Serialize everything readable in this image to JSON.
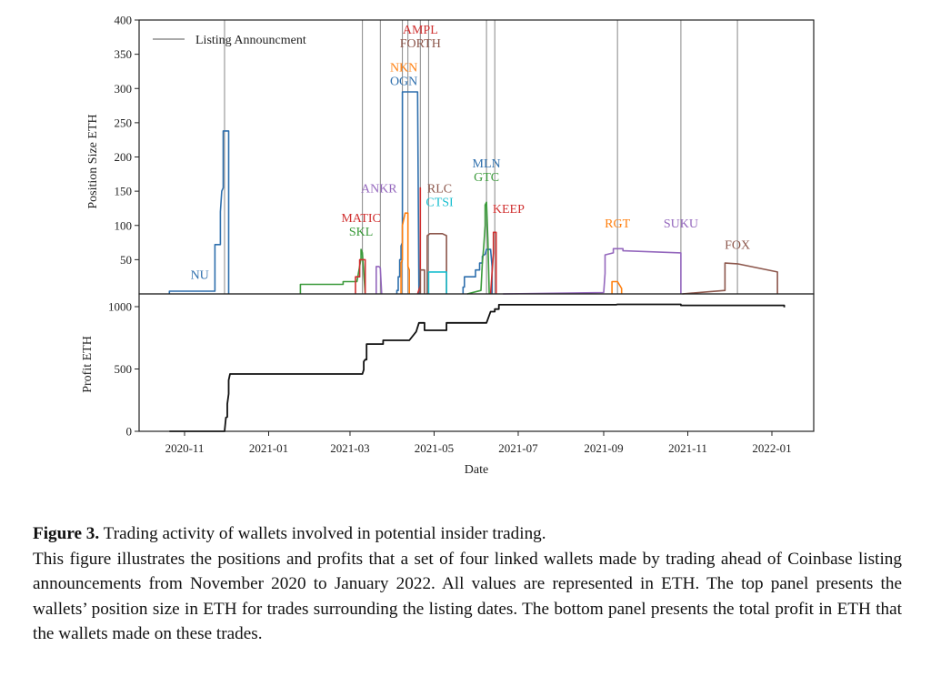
{
  "chart_data": [
    {
      "type": "line",
      "panel": "top",
      "title": "",
      "xlabel": "",
      "ylabel": "Position Size ETH",
      "ylim": [
        0,
        400
      ],
      "yticks": [
        50,
        100,
        150,
        200,
        250,
        300,
        350,
        400
      ],
      "xlim": [
        "2020-10-08",
        "2022-01-31"
      ],
      "legend": {
        "placement": "top-left",
        "entries": [
          {
            "label": "Listing Announcment",
            "style": "gray-vertical-line"
          }
        ]
      },
      "announcements": [
        "2020-11-30",
        "2021-03-10",
        "2021-03-23",
        "2021-04-08",
        "2021-04-12",
        "2021-04-21",
        "2021-04-27",
        "2021-06-08",
        "2021-06-14",
        "2021-09-11",
        "2021-10-27",
        "2021-12-07"
      ],
      "annotations": [
        {
          "text": "NU",
          "color": "#2e6fad",
          "date": "2020-11-12",
          "y": 22
        },
        {
          "text": "MATIC",
          "color": "#d03030",
          "date": "2021-03-09",
          "y": 105
        },
        {
          "text": "SKL",
          "color": "#3a9a3a",
          "date": "2021-03-09",
          "y": 85
        },
        {
          "text": "ANKR",
          "color": "#9467bd",
          "date": "2021-03-22",
          "y": 148
        },
        {
          "text": "NKN",
          "color": "#ff7f0e",
          "date": "2021-04-09",
          "y": 325
        },
        {
          "text": "OGN",
          "color": "#2e6fad",
          "date": "2021-04-09",
          "y": 305
        },
        {
          "text": "AMPL",
          "color": "#d03030",
          "date": "2021-04-21",
          "y": 380
        },
        {
          "text": "FORTH",
          "color": "#8c564b",
          "date": "2021-04-21",
          "y": 360
        },
        {
          "text": "RLC",
          "color": "#8c564b",
          "date": "2021-05-05",
          "y": 148
        },
        {
          "text": "CTSI",
          "color": "#17becf",
          "date": "2021-05-05",
          "y": 128
        },
        {
          "text": "MLN",
          "color": "#2e6fad",
          "date": "2021-06-08",
          "y": 185
        },
        {
          "text": "GTC",
          "color": "#3a9a3a",
          "date": "2021-06-08",
          "y": 165
        },
        {
          "text": "KEEP",
          "color": "#d03030",
          "date": "2021-06-24",
          "y": 118
        },
        {
          "text": "RGT",
          "color": "#ff7f0e",
          "date": "2021-09-11",
          "y": 97
        },
        {
          "text": "SUKU",
          "color": "#9467bd",
          "date": "2021-10-27",
          "y": 97
        },
        {
          "text": "FOX",
          "color": "#8c564b",
          "date": "2021-12-07",
          "y": 66
        }
      ],
      "series": [
        {
          "name": "NU",
          "color": "#2e6fad",
          "points": [
            [
              "2020-10-21",
              0
            ],
            [
              "2020-10-21",
              4
            ],
            [
              "2020-11-23",
              4
            ],
            [
              "2020-11-23",
              72
            ],
            [
              "2020-11-27",
              72
            ],
            [
              "2020-11-27",
              120
            ],
            [
              "2020-11-28",
              150
            ],
            [
              "2020-11-29",
              155
            ],
            [
              "2020-11-29",
              238
            ],
            [
              "2020-12-03",
              238
            ],
            [
              "2020-12-03",
              0
            ]
          ]
        },
        {
          "name": "SKL",
          "color": "#3a9a3a",
          "points": [
            [
              "2021-01-24",
              0
            ],
            [
              "2021-01-24",
              14
            ],
            [
              "2021-02-24",
              14
            ],
            [
              "2021-02-24",
              18
            ],
            [
              "2021-03-06",
              18
            ],
            [
              "2021-03-09",
              52
            ],
            [
              "2021-03-09",
              65
            ],
            [
              "2021-03-10",
              60
            ],
            [
              "2021-03-12",
              0
            ]
          ]
        },
        {
          "name": "MATIC",
          "color": "#d03030",
          "points": [
            [
              "2021-03-05",
              0
            ],
            [
              "2021-03-05",
              25
            ],
            [
              "2021-03-08",
              25
            ],
            [
              "2021-03-08",
              50
            ],
            [
              "2021-03-11",
              50
            ],
            [
              "2021-03-12",
              50
            ],
            [
              "2021-03-12",
              0
            ]
          ]
        },
        {
          "name": "ANKR",
          "color": "#9467bd",
          "points": [
            [
              "2021-03-20",
              0
            ],
            [
              "2021-03-20",
              40
            ],
            [
              "2021-03-22",
              40
            ],
            [
              "2021-03-23",
              38
            ],
            [
              "2021-03-24",
              0
            ]
          ]
        },
        {
          "name": "OGN",
          "color": "#2e6fad",
          "points": [
            [
              "2021-04-04",
              0
            ],
            [
              "2021-04-04",
              5
            ],
            [
              "2021-04-05",
              5
            ],
            [
              "2021-04-05",
              25
            ],
            [
              "2021-04-06",
              25
            ],
            [
              "2021-04-06",
              50
            ],
            [
              "2021-04-07",
              50
            ],
            [
              "2021-04-07",
              70
            ],
            [
              "2021-04-08",
              75
            ],
            [
              "2021-04-08",
              135
            ],
            [
              "2021-04-08",
              295
            ],
            [
              "2021-04-19",
              295
            ],
            [
              "2021-04-20",
              0
            ]
          ]
        },
        {
          "name": "NKN",
          "color": "#ff7f0e",
          "points": [
            [
              "2021-04-07",
              0
            ],
            [
              "2021-04-07",
              45
            ],
            [
              "2021-04-08",
              50
            ],
            [
              "2021-04-08",
              100
            ],
            [
              "2021-04-10",
              118
            ],
            [
              "2021-04-12",
              118
            ],
            [
              "2021-04-12",
              40
            ],
            [
              "2021-04-13",
              35
            ],
            [
              "2021-04-13",
              0
            ]
          ]
        },
        {
          "name": "AMPL",
          "color": "#d03030",
          "points": [
            [
              "2021-04-19",
              0
            ],
            [
              "2021-04-21",
              12
            ],
            [
              "2021-04-21",
              155
            ],
            [
              "2021-04-21",
              0
            ]
          ]
        },
        {
          "name": "FORTH",
          "color": "#8c564b",
          "points": [
            [
              "2021-04-21",
              0
            ],
            [
              "2021-04-21",
              35
            ],
            [
              "2021-04-24",
              35
            ],
            [
              "2021-04-24",
              0
            ]
          ]
        },
        {
          "name": "RLC",
          "color": "#8c564b",
          "points": [
            [
              "2021-04-26",
              0
            ],
            [
              "2021-04-26",
              85
            ],
            [
              "2021-04-28",
              88
            ],
            [
              "2021-05-07",
              88
            ],
            [
              "2021-05-10",
              85
            ],
            [
              "2021-05-10",
              0
            ]
          ]
        },
        {
          "name": "CTSI",
          "color": "#17becf",
          "points": [
            [
              "2021-04-27",
              0
            ],
            [
              "2021-04-27",
              32
            ],
            [
              "2021-05-10",
              32
            ],
            [
              "2021-05-10",
              0
            ]
          ]
        },
        {
          "name": "MLN",
          "color": "#2e6fad",
          "points": [
            [
              "2021-05-22",
              0
            ],
            [
              "2021-05-22",
              10
            ],
            [
              "2021-05-23",
              10
            ],
            [
              "2021-05-23",
              25
            ],
            [
              "2021-05-31",
              25
            ],
            [
              "2021-05-31",
              35
            ],
            [
              "2021-06-03",
              35
            ],
            [
              "2021-06-03",
              45
            ],
            [
              "2021-06-05",
              45
            ],
            [
              "2021-06-05",
              55
            ],
            [
              "2021-06-07",
              58
            ],
            [
              "2021-06-08",
              65
            ],
            [
              "2021-06-11",
              65
            ],
            [
              "2021-06-12",
              40
            ],
            [
              "2021-06-12",
              0
            ]
          ]
        },
        {
          "name": "GTC",
          "color": "#3a9a3a",
          "points": [
            [
              "2021-05-25",
              0
            ],
            [
              "2021-06-04",
              5
            ],
            [
              "2021-06-05",
              45
            ],
            [
              "2021-06-06",
              70
            ],
            [
              "2021-06-07",
              100
            ],
            [
              "2021-06-07",
              130
            ],
            [
              "2021-06-08",
              134
            ],
            [
              "2021-06-09",
              80
            ],
            [
              "2021-06-10",
              0
            ]
          ]
        },
        {
          "name": "KEEP",
          "color": "#d03030",
          "points": [
            [
              "2021-06-11",
              0
            ],
            [
              "2021-06-13",
              60
            ],
            [
              "2021-06-13",
              90
            ],
            [
              "2021-06-15",
              90
            ],
            [
              "2021-06-15",
              0
            ]
          ]
        },
        {
          "name": "SUKU",
          "color": "#9467bd",
          "points": [
            [
              "2021-06-20",
              0
            ],
            [
              "2021-09-01",
              2
            ],
            [
              "2021-09-02",
              30
            ],
            [
              "2021-09-02",
              57
            ],
            [
              "2021-09-08",
              60
            ],
            [
              "2021-09-08",
              66
            ],
            [
              "2021-09-15",
              66
            ],
            [
              "2021-09-15",
              63
            ],
            [
              "2021-10-27",
              60
            ],
            [
              "2021-10-27",
              0
            ]
          ]
        },
        {
          "name": "RGT",
          "color": "#ff7f0e",
          "points": [
            [
              "2021-09-07",
              0
            ],
            [
              "2021-09-07",
              18
            ],
            [
              "2021-09-11",
              18
            ],
            [
              "2021-09-14",
              8
            ],
            [
              "2021-09-14",
              0
            ]
          ]
        },
        {
          "name": "FOX",
          "color": "#8c564b",
          "points": [
            [
              "2021-10-28",
              0
            ],
            [
              "2021-11-28",
              5
            ],
            [
              "2021-11-28",
              45
            ],
            [
              "2021-12-07",
              44
            ],
            [
              "2022-01-05",
              32
            ],
            [
              "2022-01-05",
              0
            ]
          ]
        }
      ]
    },
    {
      "type": "line",
      "panel": "bottom",
      "title": "",
      "xlabel": "Date",
      "ylabel": "Profit ETH",
      "ylim": [
        0,
        1100
      ],
      "yticks": [
        0,
        500,
        1000
      ],
      "xticks": [
        "2020-11",
        "2021-01",
        "2021-03",
        "2021-05",
        "2021-07",
        "2021-09",
        "2021-11",
        "2022-01"
      ],
      "series": [
        {
          "name": "Profit",
          "color": "#111111",
          "points": [
            [
              "2020-10-21",
              0
            ],
            [
              "2020-11-30",
              0
            ],
            [
              "2020-12-01",
              110
            ],
            [
              "2020-12-02",
              115
            ],
            [
              "2020-12-02",
              220
            ],
            [
              "2020-12-03",
              300
            ],
            [
              "2020-12-03",
              410
            ],
            [
              "2020-12-04",
              460
            ],
            [
              "2021-03-10",
              460
            ],
            [
              "2021-03-11",
              495
            ],
            [
              "2021-03-11",
              560
            ],
            [
              "2021-03-12",
              575
            ],
            [
              "2021-03-13",
              575
            ],
            [
              "2021-03-13",
              700
            ],
            [
              "2021-03-25",
              700
            ],
            [
              "2021-03-25",
              730
            ],
            [
              "2021-04-13",
              730
            ],
            [
              "2021-04-18",
              800
            ],
            [
              "2021-04-20",
              870
            ],
            [
              "2021-04-24",
              870
            ],
            [
              "2021-04-24",
              810
            ],
            [
              "2021-05-10",
              810
            ],
            [
              "2021-05-10",
              870
            ],
            [
              "2021-06-08",
              870
            ],
            [
              "2021-06-11",
              960
            ],
            [
              "2021-06-14",
              960
            ],
            [
              "2021-06-14",
              980
            ],
            [
              "2021-06-17",
              980
            ],
            [
              "2021-06-17",
              1015
            ],
            [
              "2021-09-10",
              1015
            ],
            [
              "2021-09-11",
              1018
            ],
            [
              "2021-10-27",
              1018
            ],
            [
              "2021-10-27",
              1010
            ],
            [
              "2022-01-10",
              1010
            ],
            [
              "2022-01-10",
              995
            ]
          ]
        }
      ]
    }
  ],
  "caption": {
    "figure_number": "Figure 3.",
    "figure_title": "Trading activity of wallets involved in potential insider trading.",
    "body": "This figure illustrates the positions and profits that a set of four linked wallets made by trading ahead of Coinbase listing announcements from November 2020 to January 2022.  All values are represented in ETH. The top panel presents the wallets’ position size in ETH for trades surrounding the listing dates.  The bottom panel presents the total profit in ETH that the wallets made on these trades."
  }
}
